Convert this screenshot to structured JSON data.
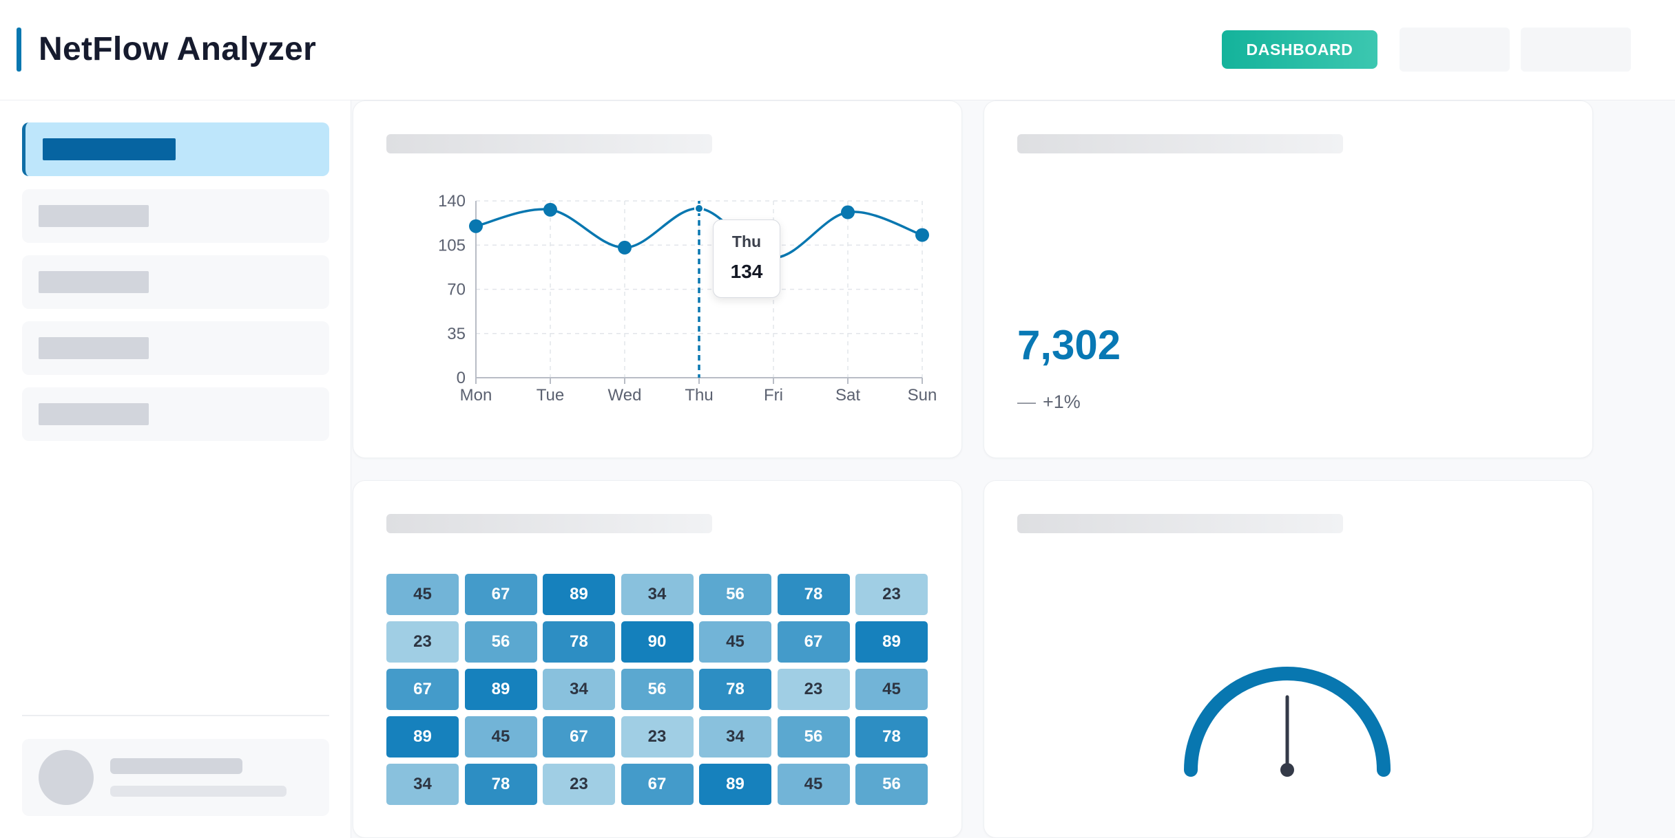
{
  "app": {
    "title": "NetFlow Analyzer"
  },
  "header": {
    "nav": [
      {
        "label": "DASHBOARD",
        "active": true
      },
      {
        "label": "",
        "active": false
      },
      {
        "label": "",
        "active": false
      }
    ]
  },
  "sidebar": {
    "items": [
      {
        "active": true
      },
      {
        "active": false
      },
      {
        "active": false
      },
      {
        "active": false
      },
      {
        "active": false
      }
    ]
  },
  "colors": {
    "accent": "#0877b0",
    "teal": "#14b39b",
    "active_bg": "#bee6fb"
  },
  "traffic_chart": {
    "chart_data": {
      "type": "line",
      "categories": [
        "Mon",
        "Tue",
        "Wed",
        "Thu",
        "Fri",
        "Sat",
        "Sun"
      ],
      "series": [
        {
          "values": [
            120,
            133,
            103,
            134,
            95,
            131,
            113
          ]
        }
      ],
      "ylim": [
        0,
        140
      ],
      "yticks": [
        "0",
        "35",
        "70",
        "105",
        "140"
      ],
      "grid": true,
      "highlight": {
        "label": "Thu",
        "value": "134"
      }
    }
  },
  "kpi": {
    "value": "7,302",
    "trend_icon": "flat-dash-icon",
    "trend": "+1%"
  },
  "heatmap": {
    "chart_data": {
      "type": "heatmap",
      "rows": [
        [
          45,
          67,
          89,
          34,
          56,
          78,
          23
        ],
        [
          23,
          56,
          78,
          90,
          45,
          67,
          89
        ],
        [
          67,
          89,
          34,
          56,
          78,
          23,
          45
        ],
        [
          89,
          45,
          67,
          23,
          34,
          56,
          78
        ],
        [
          34,
          78,
          23,
          67,
          89,
          45,
          56
        ]
      ]
    }
  },
  "gauge": {
    "value_fraction": 0.5,
    "color": "#0877b0"
  }
}
